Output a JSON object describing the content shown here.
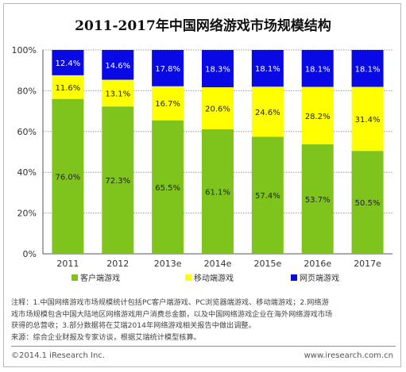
{
  "title": "2011-2017年中国网络游戏市场规模结构",
  "colors": {
    "client": "#7fc31d",
    "mobile": "#ffff00",
    "web": "#0909e6",
    "grid": "#999999",
    "axis": "#555555"
  },
  "chart_data": {
    "type": "bar",
    "stacked": true,
    "categories": [
      "2011",
      "2012",
      "2013e",
      "2014e",
      "2015e",
      "2016e",
      "2017e"
    ],
    "series": [
      {
        "name": "客户端游戏",
        "color": "#7fc31d",
        "values": [
          76.0,
          72.3,
          65.5,
          61.1,
          57.4,
          53.7,
          50.5
        ]
      },
      {
        "name": "移动端游戏",
        "color": "#ffff00",
        "values": [
          11.6,
          13.1,
          16.7,
          20.6,
          24.6,
          28.2,
          31.4
        ]
      },
      {
        "name": "网页端游戏",
        "color": "#0909e6",
        "values": [
          12.4,
          14.6,
          17.8,
          18.3,
          18.1,
          18.1,
          18.1
        ]
      }
    ],
    "ylim": [
      0,
      100
    ],
    "yticks": [
      "0%",
      "20%",
      "40%",
      "60%",
      "80%",
      "100%"
    ],
    "ytick_values": [
      0,
      20,
      40,
      60,
      80,
      100
    ],
    "grid": true,
    "legend_position": "bottom"
  },
  "notes": {
    "line1": "注释：1.中国网络游戏市场规模统计包括PC客户端游戏、PC浏览器端游戏、移动端游戏；2.网络游",
    "line2": "戏市场规模包含中国大陆地区网络游戏用户消费总金额，以及中国网络游戏企业在海外网络游戏市场",
    "line3": "获得的总营收；3.部分数据将在艾瑞2014年网络游戏相关报告中做出调整。",
    "source": "来源：综合企业财报及专家访谈，根据艾瑞统计模型核算。"
  },
  "copyright": "©2014.1 iResearch Inc.",
  "site": "www.iresearch.com.cn"
}
